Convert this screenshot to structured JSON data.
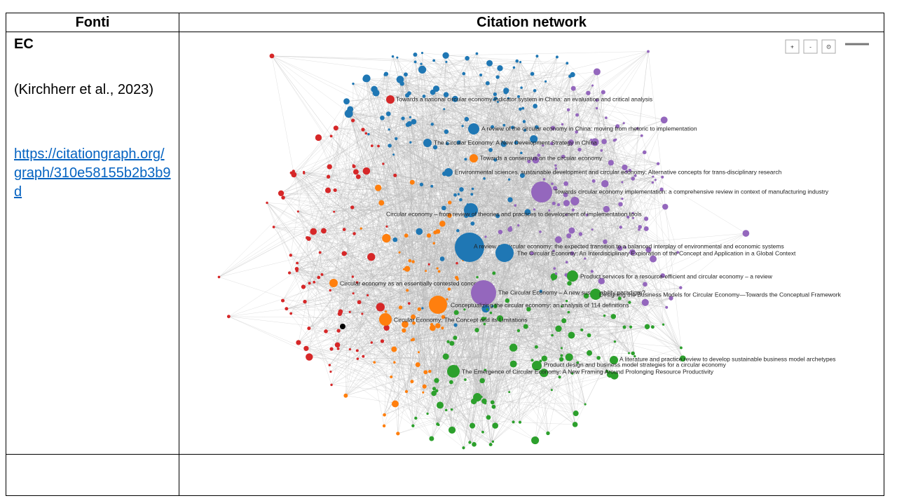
{
  "table": {
    "header": [
      "Fonti",
      "Citation network"
    ],
    "rows": [
      {
        "name": "EC",
        "citation": "(Kirchherr et al., 2023)",
        "link": "https://citationgraph.org/graph/310e58155b2b3b9d"
      }
    ]
  },
  "network": {
    "controls": [
      "+",
      "-",
      "⊙"
    ],
    "nodes": [
      {
        "label": "Towards a national circular economy indicator system in China: an evaluation and critical analysis",
        "color": "#d62728"
      },
      {
        "label": "A review of the circular economy in China: moving from rhetoric to implementation",
        "color": "#1f77b4"
      },
      {
        "label": "The Circular Economy: A New Development Strategy in China",
        "color": "#1f77b4"
      },
      {
        "label": "Towards a consensus on the circular economy",
        "color": "#ff7f0e"
      },
      {
        "label": "Environmental sciences, sustainable development and circular economy: Alternative concepts for trans-disciplinary research",
        "color": "#1f77b4"
      },
      {
        "label": "Towards circular economy implementation: a comprehensive review in context of manufacturing industry",
        "color": "#9467bd"
      },
      {
        "label": "Circular economy – from review of theories and practices to development of implementation tools",
        "color": "#1f77b4"
      },
      {
        "label": "A review on circular economy: the expected transition to a balanced interplay of environmental and economic systems",
        "color": "#1f77b4"
      },
      {
        "label": "The Circular Economy: An Interdisciplinary Exploration of the Concept and Application in a Global Context",
        "color": "#1f77b4"
      },
      {
        "label": "Product services for a resource-efficient and circular economy – a review",
        "color": "#2ca02c"
      },
      {
        "label": "Circular economy as an essentially contested concept",
        "color": "#ff7f0e"
      },
      {
        "label": "The Circular Economy – A new sustainability paradigm?",
        "color": "#9467bd"
      },
      {
        "label": "Designing the Business Models for Circular Economy—Towards the Conceptual Framework",
        "color": "#2ca02c"
      },
      {
        "label": "Conceptualizing the circular economy: an analysis of 114 definitions",
        "color": "#ff7f0e"
      },
      {
        "label": "Circular Economy: The Concept and its Limitations",
        "color": "#ff7f0e"
      },
      {
        "label": "A literature and practice review to develop sustainable business model archetypes",
        "color": "#2ca02c"
      },
      {
        "label": "Product design and business model strategies for a circular economy",
        "color": "#2ca02c"
      },
      {
        "label": "The Emergence of Circular Economy: A New Framing Around Prolonging Resource Productivity",
        "color": "#2ca02c"
      }
    ]
  }
}
